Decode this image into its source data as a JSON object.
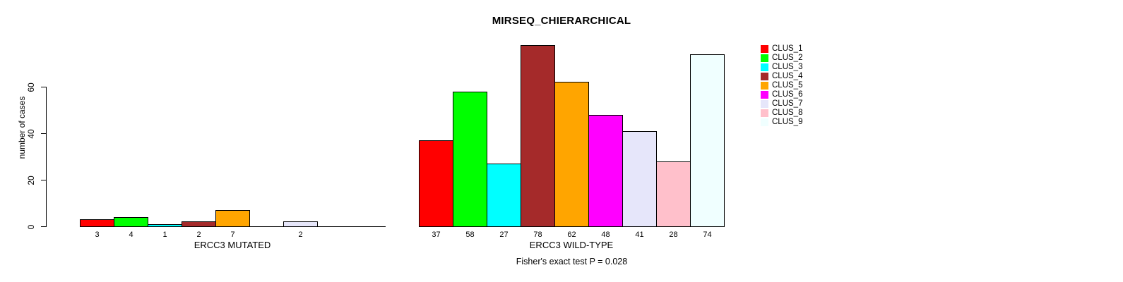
{
  "title": "MIRSEQ_CHIERARCHICAL",
  "footer": "Fisher's exact test P = 0.028",
  "chart_data": {
    "type": "bar",
    "title": "MIRSEQ_CHIERARCHICAL",
    "ylabel": "number of cases",
    "xlabel": "",
    "yticks": [
      0,
      20,
      40,
      60
    ],
    "ylim": [
      0,
      79
    ],
    "grid": false,
    "legend_position": "right-top",
    "annotation": "Fisher's exact test P = 0.028",
    "categories": [
      "CLUS_1",
      "CLUS_2",
      "CLUS_3",
      "CLUS_4",
      "CLUS_5",
      "CLUS_6",
      "CLUS_7",
      "CLUS_8",
      "CLUS_9"
    ],
    "cluster_colors": [
      "#FF0000",
      "#00FF00",
      "#00FFFF",
      "#A52A2A",
      "#FFA500",
      "#FF00FF",
      "#E6E6FA",
      "#FFC0CB",
      "#F0FFFF"
    ],
    "series": [
      {
        "name": "ERCC3 MUTATED",
        "values": [
          3,
          4,
          1,
          2,
          7,
          0,
          2,
          0,
          0
        ]
      },
      {
        "name": "ERCC3 WILD-TYPE",
        "values": [
          37,
          58,
          27,
          78,
          62,
          48,
          41,
          28,
          74
        ]
      }
    ]
  },
  "legend": {
    "items": [
      {
        "label": "CLUS_1",
        "color": "#FF0000"
      },
      {
        "label": "CLUS_2",
        "color": "#00FF00"
      },
      {
        "label": "CLUS_3",
        "color": "#00FFFF"
      },
      {
        "label": "CLUS_4",
        "color": "#A52A2A"
      },
      {
        "label": "CLUS_5",
        "color": "#FFA500"
      },
      {
        "label": "CLUS_6",
        "color": "#FF00FF"
      },
      {
        "label": "CLUS_7",
        "color": "#E6E6FA"
      },
      {
        "label": "CLUS_8",
        "color": "#FFC0CB"
      },
      {
        "label": "CLUS_9",
        "color": "#F0FFFF"
      }
    ]
  }
}
